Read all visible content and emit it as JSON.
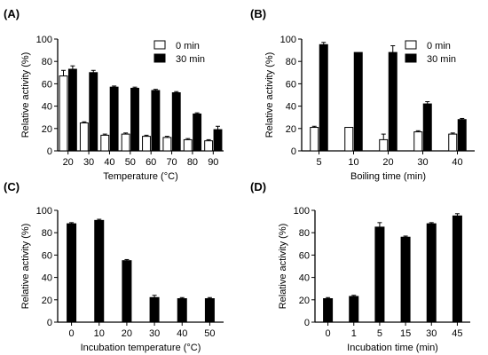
{
  "chart_data": [
    {
      "panel": "(A)",
      "type": "bar",
      "xlabel": "Temperature (°C)",
      "ylabel": "Relative activity (%)",
      "ylim": [
        0,
        100
      ],
      "yticks": [
        0,
        20,
        40,
        60,
        80,
        100
      ],
      "categories": [
        "20",
        "30",
        "40",
        "50",
        "60",
        "70",
        "80",
        "90"
      ],
      "series": [
        {
          "name": "0 min",
          "color": "#ffffff",
          "values": [
            67,
            25,
            14,
            15,
            13,
            12,
            10,
            9
          ],
          "errors": [
            5,
            1,
            1,
            1,
            1,
            1,
            1,
            1
          ]
        },
        {
          "name": "30 min",
          "color": "#000000",
          "values": [
            73,
            70,
            57,
            56,
            54,
            52,
            33,
            19
          ],
          "errors": [
            3,
            2,
            1,
            1,
            1,
            1,
            1,
            3
          ]
        }
      ],
      "legend": "top-right"
    },
    {
      "panel": "(B)",
      "type": "bar",
      "xlabel": "Boiling time (min)",
      "ylabel": "Relative activity (%)",
      "ylim": [
        0,
        100
      ],
      "yticks": [
        0,
        20,
        40,
        60,
        80,
        100
      ],
      "categories": [
        "5",
        "10",
        "20",
        "30",
        "40"
      ],
      "series": [
        {
          "name": "0 min",
          "color": "#ffffff",
          "values": [
            21,
            21,
            10,
            17,
            15
          ],
          "errors": [
            1,
            0,
            5,
            1,
            1
          ]
        },
        {
          "name": "30 min",
          "color": "#000000",
          "values": [
            95,
            88,
            88,
            42,
            28
          ],
          "errors": [
            2,
            0,
            6,
            2,
            1
          ]
        }
      ],
      "legend": "top-right"
    },
    {
      "panel": "(C)",
      "type": "bar",
      "xlabel": "Incubation temperature (°C)",
      "ylabel": "Relative activity (%)",
      "ylim": [
        0,
        100
      ],
      "yticks": [
        0,
        20,
        40,
        60,
        80,
        100
      ],
      "categories": [
        "0",
        "10",
        "20",
        "30",
        "40",
        "50"
      ],
      "series": [
        {
          "name": "",
          "color": "#000000",
          "values": [
            88,
            91,
            55,
            22,
            21,
            21
          ],
          "errors": [
            1,
            1,
            1,
            2,
            1,
            1
          ]
        }
      ],
      "legend": "none"
    },
    {
      "panel": "(D)",
      "type": "bar",
      "xlabel": "Incubation time (min)",
      "ylabel": "Relative activity (%)",
      "ylim": [
        0,
        100
      ],
      "yticks": [
        0,
        20,
        40,
        60,
        80,
        100
      ],
      "categories": [
        "0",
        "1",
        "5",
        "15",
        "30",
        "45"
      ],
      "series": [
        {
          "name": "",
          "color": "#000000",
          "values": [
            21,
            23,
            85,
            76,
            88,
            95
          ],
          "errors": [
            1,
            1,
            4,
            1,
            1,
            2
          ]
        }
      ],
      "legend": "none"
    }
  ]
}
